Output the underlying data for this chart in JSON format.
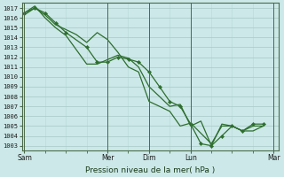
{
  "title": "Pression niveau de la mer( hPa )",
  "ylabel_values": [
    1003,
    1004,
    1005,
    1006,
    1007,
    1008,
    1009,
    1010,
    1011,
    1012,
    1013,
    1014,
    1015,
    1016,
    1017
  ],
  "ylim": [
    1002.5,
    1017.5
  ],
  "background_color": "#cce8e8",
  "grid_major_color": "#a8c8c8",
  "grid_minor_color": "#b8d8d8",
  "line_color": "#2d6e2d",
  "x_ticks_positions": [
    0.0,
    0.333,
    0.5,
    0.667,
    1.0
  ],
  "x_tick_labels": [
    "Sam",
    "Mer",
    "Dim",
    "Lun",
    "Mar"
  ],
  "series": [
    {
      "x": [
        0.0,
        0.042,
        0.083,
        0.125,
        0.167,
        0.25,
        0.292,
        0.333,
        0.375,
        0.417,
        0.458,
        0.5,
        0.542,
        0.583,
        0.625,
        0.667,
        0.708,
        0.75,
        0.792,
        0.833,
        0.875,
        0.917,
        0.958
      ],
      "y": [
        1016.5,
        1017.0,
        1016.5,
        1015.5,
        1014.5,
        1013.0,
        1011.5,
        1011.5,
        1012.0,
        1011.8,
        1011.5,
        1010.5,
        1009.0,
        1007.5,
        1007.0,
        1005.2,
        1003.2,
        1003.0,
        1004.0,
        1005.0,
        1004.5,
        1005.2,
        1005.2
      ],
      "has_markers": true
    },
    {
      "x": [
        0.0,
        0.042,
        0.083,
        0.125,
        0.167,
        0.25,
        0.292,
        0.375,
        0.417,
        0.458,
        0.5,
        0.542,
        0.583,
        0.625,
        0.667,
        0.708,
        0.75,
        0.792,
        0.833,
        0.875,
        0.917,
        0.958
      ],
      "y": [
        1016.5,
        1017.2,
        1016.0,
        1015.0,
        1014.2,
        1011.3,
        1011.3,
        1012.2,
        1011.9,
        1011.0,
        1009.0,
        1008.0,
        1007.0,
        1007.2,
        1005.0,
        1005.5,
        1003.0,
        1005.2,
        1005.0,
        1004.5,
        1004.5,
        1005.0
      ],
      "has_markers": false
    },
    {
      "x": [
        0.0,
        0.042,
        0.083,
        0.125,
        0.167,
        0.208,
        0.25,
        0.292,
        0.333,
        0.375,
        0.417,
        0.458,
        0.5,
        0.542,
        0.583,
        0.625,
        0.667,
        0.75,
        0.792,
        0.833,
        0.875,
        0.917,
        0.958
      ],
      "y": [
        1016.3,
        1017.0,
        1016.3,
        1015.3,
        1014.8,
        1014.3,
        1013.5,
        1014.5,
        1013.8,
        1012.5,
        1011.0,
        1010.5,
        1007.5,
        1007.0,
        1006.5,
        1005.0,
        1005.3,
        1003.2,
        1005.0,
        1005.0,
        1004.5,
        1005.0,
        1005.0
      ],
      "has_markers": false
    }
  ]
}
